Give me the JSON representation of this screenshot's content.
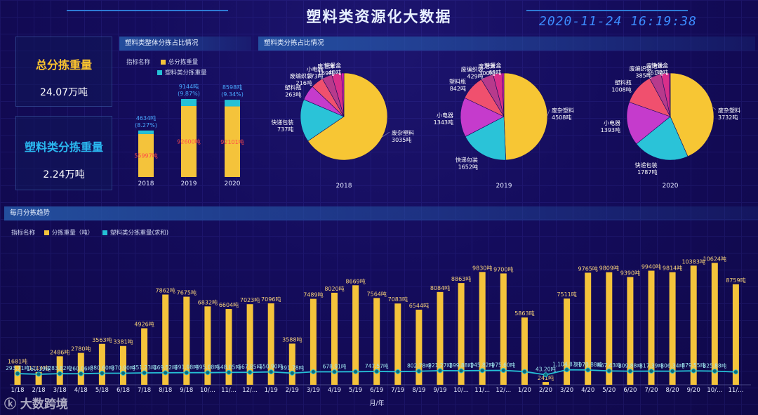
{
  "title": "塑料类资源化大数据",
  "datetime": "2020-11-24 16:19:38",
  "kpis": [
    {
      "label": "总分拣重量",
      "value": "24.07万吨",
      "color": "#ffc62e"
    },
    {
      "label": "塑料类分拣重量",
      "value": "2.24万吨",
      "color": "#2ab8f0"
    }
  ],
  "panels": {
    "overall_title": "塑料类整体分拣占比情况",
    "pie_title": "塑料类分拣占比情况",
    "monthly_title": "每月分拣趋势"
  },
  "legend_indicator": "指标名称",
  "colors": {
    "total": "#f4c33b",
    "plastic": "#25c1d6",
    "bar_label": "#ff4a4a",
    "pct_label": "#4aa8ff"
  },
  "watermark": "大数跨境",
  "chart_data": [
    {
      "type": "bar",
      "id": "overall",
      "categories": [
        "2018",
        "2019",
        "2020"
      ],
      "series": [
        {
          "name": "总分拣重量",
          "values": [
            55997,
            92600,
            92101
          ],
          "labels": [
            "55997吨",
            "92600吨",
            "92101吨"
          ]
        },
        {
          "name": "塑料类分拣重量",
          "values": [
            4634,
            9144,
            8598
          ],
          "labels": [
            "4634吨",
            "9144吨",
            "8598吨"
          ],
          "pct": [
            "(8.27%)",
            "(9.87%)",
            "(9.34%)"
          ]
        }
      ],
      "ylim": [
        0,
        110000
      ]
    },
    {
      "type": "pie",
      "id": "pies",
      "colors": [
        "#f7c634",
        "#2ac3d8",
        "#c53bcc",
        "#f0506e",
        "#b73a8c",
        "#d92f8a",
        "#e11fb6"
      ],
      "pies": [
        {
          "year": "2018",
          "slices": [
            {
              "name": "废杂塑料",
              "value": 3035,
              "label": "3035吨"
            },
            {
              "name": "快递包装",
              "value": 737,
              "label": "737吨"
            },
            {
              "name": "塑料瓶",
              "value": 263,
              "label": "263吨"
            },
            {
              "name": "废编织袋",
              "value": 216,
              "label": "216吨"
            },
            {
              "name": "小电器",
              "value": 173,
              "label": "173吨"
            },
            {
              "name": "废泡沫",
              "value": 169,
              "label": "169吨"
            },
            {
              "name": "快餐盒",
              "value": 40,
              "label": "40吨"
            }
          ]
        },
        {
          "year": "2019",
          "slices": [
            {
              "name": "废杂塑料",
              "value": 4508,
              "label": "4508吨"
            },
            {
              "name": "快递包装",
              "value": 1652,
              "label": "1652吨"
            },
            {
              "name": "小电器",
              "value": 1343,
              "label": "1343吨"
            },
            {
              "name": "塑料瓶",
              "value": 842,
              "label": "842吨"
            },
            {
              "name": "废编织袋",
              "value": 429,
              "label": "429吨"
            },
            {
              "name": "废泡沫",
              "value": 300,
              "label": "300吨"
            },
            {
              "name": "快餐盒",
              "value": 68,
              "label": "68吨"
            }
          ]
        },
        {
          "year": "2020",
          "slices": [
            {
              "name": "废杂塑料",
              "value": 3732,
              "label": "3732吨"
            },
            {
              "name": "快递包装",
              "value": 1787,
              "label": "1787吨"
            },
            {
              "name": "小电器",
              "value": 1393,
              "label": "1393吨"
            },
            {
              "name": "塑料瓶",
              "value": 1008,
              "label": "1008吨"
            },
            {
              "name": "废编织袋",
              "value": 385,
              "label": "385吨"
            },
            {
              "name": "废泡沫",
              "value": 261,
              "label": "261吨"
            },
            {
              "name": "快餐盒",
              "value": 32,
              "label": "32吨"
            }
          ]
        }
      ]
    },
    {
      "type": "bar",
      "id": "monthly",
      "xlabel": "月/年",
      "ylim": [
        0,
        11500
      ],
      "categories": [
        "1/18",
        "2/18",
        "3/18",
        "4/18",
        "5/18",
        "6/18",
        "7/18",
        "8/18",
        "9/18",
        "10/...",
        "11/...",
        "12/...",
        "1/19",
        "2/19",
        "3/19",
        "4/19",
        "5/19",
        "6/19",
        "7/19",
        "8/19",
        "9/19",
        "10/...",
        "11/...",
        "12/...",
        "1/20",
        "2/20",
        "3/20",
        "4/20",
        "5/20",
        "6/20",
        "7/20",
        "8/20",
        "9/20",
        "10/...",
        "11/..."
      ],
      "series": [
        {
          "name": "分拣重量（吨）",
          "type": "bar",
          "values": [
            1681,
            1114,
            2486,
            2780,
            3563,
            3381,
            4926,
            7862,
            7675,
            6832,
            6604,
            7023,
            7096,
            3588,
            7489,
            8020,
            8669,
            7564,
            7083,
            6544,
            8084,
            8863,
            9830,
            9700,
            5863,
            241,
            7511,
            9765,
            9809,
            9390,
            9940,
            9814,
            10383,
            10624,
            8759
          ],
          "labels": [
            "1681吨",
            "1114吨",
            "2486吨",
            "2780吨",
            "3563吨",
            "3381吨",
            "4926吨",
            "7862吨",
            "7675吨",
            "6832吨",
            "6604吨",
            "7023吨",
            "7096吨",
            "3588吨",
            "7489吨",
            "8020吨",
            "8669吨",
            "7564吨",
            "7083吨",
            "6544吨",
            "8084吨",
            "8863吨",
            "9830吨",
            "9700吨",
            "5863吨",
            "241吨",
            "7511吨",
            "9765吨",
            "9809吨",
            "9390吨",
            "9940吨",
            "9814吨",
            "10383吨",
            "10624吨",
            "8759吨"
          ]
        },
        {
          "name": "塑料类分拣重量(求和)",
          "type": "line",
          "values": [
            293.71,
            160.19,
            283.82,
            260.06,
            380.6,
            370.9,
            451.23,
            469.52,
            491.98,
            495.08,
            548.05,
            567.85,
            650.9,
            391.78,
            680.0,
            678.91,
            700.0,
            747.57,
            700.0,
            802.78,
            921.27,
            899.88,
            945.82,
            975.6,
            719.22,
            43.2,
            1104.87,
            1070.88,
            867.43,
            809.88,
            817.39,
            806.34,
            879.55,
            825.88,
            640.0
          ],
          "labels": [
            "293.71吨",
            "160.19吨",
            "283.82吨",
            "260.06吨",
            "380.60吨",
            "370.90吨",
            "451.23吨",
            "469.52吨",
            "491.98吨",
            "495.08吨",
            "548.05吨",
            "567.85吨",
            "650.90吨",
            "391.78吨",
            "",
            "678.91吨",
            "",
            "747.57吨",
            "",
            "802.78吨",
            "921.27吨",
            "899.88吨",
            "945.82吨",
            "975.60吨",
            "",
            "43.20吨",
            "1,104.87吨",
            "1,070.88吨",
            "867.43吨",
            "809.88吨",
            "817.39吨",
            "806.34吨",
            "879.55吨",
            "825.88吨",
            ""
          ]
        }
      ]
    }
  ]
}
